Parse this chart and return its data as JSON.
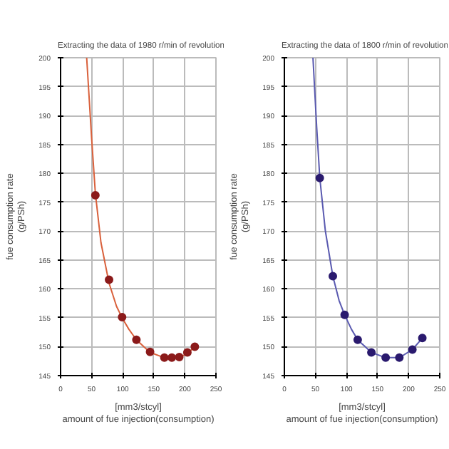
{
  "chart_data": [
    {
      "type": "scatter",
      "title": "Extracting the data of 1980 r/min of revolution",
      "xlabel": "[mm3/stcyl]\namount of fue injection(consumption)",
      "ylabel": "fue consumption rate\n(g/PSh)",
      "xlim": [
        0,
        250
      ],
      "xticks": [
        0,
        50,
        100,
        150,
        200,
        250
      ],
      "ylim": [
        145,
        200
      ],
      "yticks": [
        145,
        150,
        155,
        160,
        165,
        170,
        175,
        180,
        185,
        190,
        195,
        200
      ],
      "grid": true,
      "marker": "circle",
      "series": [
        {
          "type": "line",
          "marker": "none",
          "color": "#d9603b",
          "x": [
            42,
            50,
            56,
            65,
            78,
            90,
            99,
            110,
            122,
            144,
            167,
            190,
            204,
            216
          ],
          "values": [
            200,
            186,
            176.5,
            168,
            161,
            157,
            155,
            153,
            151.2,
            149,
            148.1,
            148.1,
            148.8,
            150
          ]
        },
        {
          "color": "#8b1a1a",
          "x": [
            56,
            78,
            99,
            122,
            144,
            167,
            179,
            191,
            204,
            216
          ],
          "values": [
            176.2,
            161.6,
            155.1,
            151.2,
            149.1,
            148.1,
            148.1,
            148.2,
            149,
            150
          ]
        }
      ]
    },
    {
      "type": "scatter",
      "title": "Extracting the data of 1800 r/min of revolution",
      "xlabel": "[mm3/stcyl]\namount of fue injection(consumption)",
      "ylabel": "fue consumption rate\n(g/PSh)",
      "xlim": [
        0,
        250
      ],
      "xticks": [
        0,
        50,
        100,
        150,
        200,
        250
      ],
      "ylim": [
        145,
        200
      ],
      "yticks": [
        145,
        150,
        155,
        160,
        165,
        170,
        175,
        180,
        185,
        190,
        195,
        200
      ],
      "grid": true,
      "marker": "circle",
      "series": [
        {
          "type": "line",
          "marker": "none",
          "color": "#5a5ab0",
          "x": [
            46,
            52,
            57,
            66,
            78,
            88,
            97,
            108,
            118,
            140,
            163,
            185,
            206,
            222
          ],
          "values": [
            200,
            188,
            179.2,
            170,
            162.2,
            158,
            155.5,
            153,
            151.2,
            149,
            148.1,
            148.1,
            149.5,
            151.5
          ]
        },
        {
          "color": "#2a1a6e",
          "x": [
            57,
            78,
            97,
            118,
            140,
            163,
            185,
            206,
            222
          ],
          "values": [
            179.2,
            162.2,
            155.5,
            151.2,
            149,
            148.1,
            148.1,
            149.5,
            151.5
          ]
        }
      ]
    }
  ]
}
